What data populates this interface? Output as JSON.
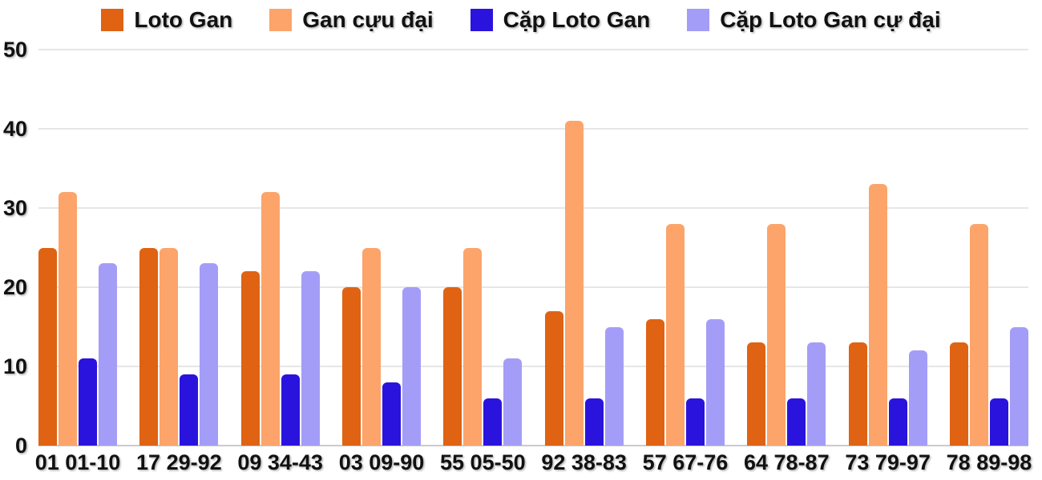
{
  "chart_data": {
    "type": "bar",
    "title": "",
    "xlabel": "",
    "ylabel": "",
    "ylim": [
      0,
      50
    ],
    "yticks": [
      0,
      10,
      20,
      30,
      40,
      50
    ],
    "grid": true,
    "legend_position": "top",
    "categories": [
      "01 01-10",
      "17 29-92",
      "09 34-43",
      "03 09-90",
      "55 05-50",
      "92 38-83",
      "57 67-76",
      "64 78-87",
      "73 79-97",
      "78 89-98"
    ],
    "series": [
      {
        "name": "Loto Gan",
        "color": "#df6313",
        "values": [
          25,
          25,
          22,
          20,
          20,
          17,
          16,
          13,
          13,
          13
        ]
      },
      {
        "name": "Gan cựu đại",
        "color": "#fca46a",
        "values": [
          32,
          25,
          32,
          25,
          25,
          41,
          28,
          28,
          33,
          28
        ]
      },
      {
        "name": "Cặp Loto Gan",
        "color": "#2a14dd",
        "values": [
          11,
          9,
          9,
          8,
          6,
          6,
          6,
          6,
          6,
          6
        ]
      },
      {
        "name": "Cặp Loto Gan cự đại",
        "color": "#a49df7",
        "values": [
          23,
          23,
          22,
          20,
          11,
          15,
          16,
          13,
          12,
          15
        ]
      }
    ],
    "colors": {
      "grid": "#e6e6e6",
      "baseline": "#cbcbcb",
      "text": "#111111",
      "background": "#ffffff"
    }
  }
}
